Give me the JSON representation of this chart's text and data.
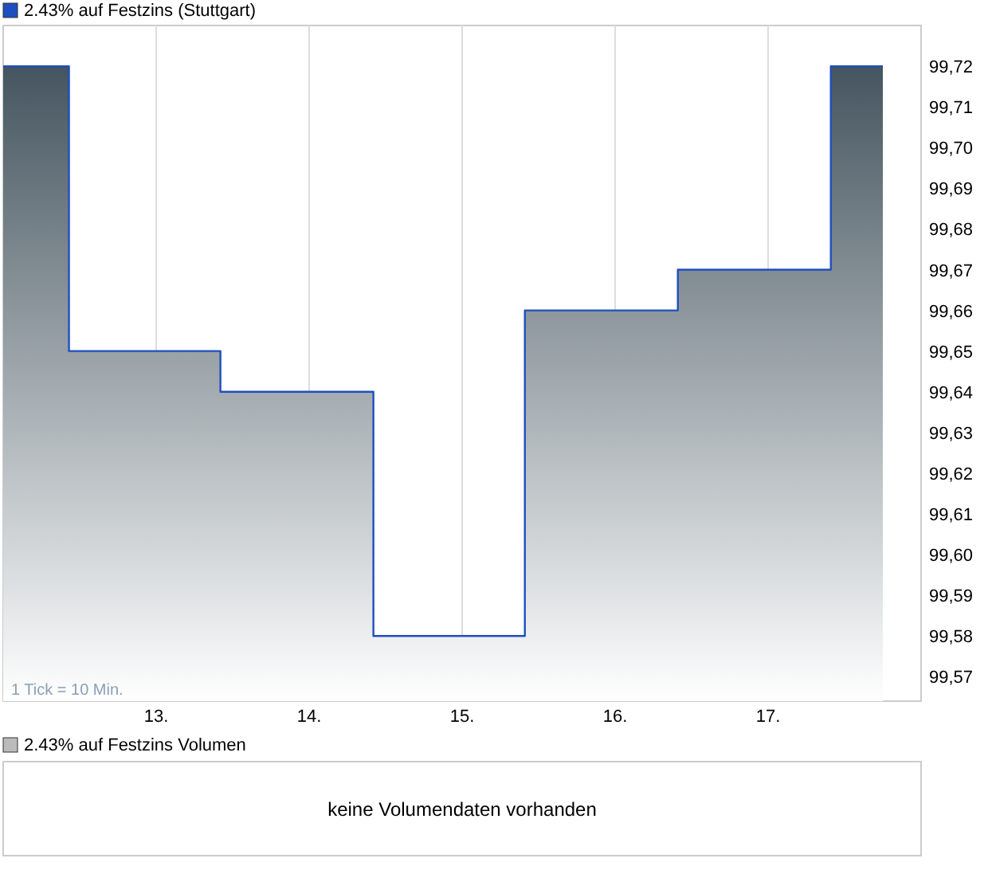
{
  "chart_data": [
    {
      "type": "area",
      "title": "2.43%  auf Festzins (Stuttgart)",
      "x": [
        12,
        12.43,
        12.43,
        13.42,
        13.42,
        14.42,
        14.42,
        15.41,
        15.41,
        16.41,
        16.41,
        17.41,
        17.41,
        17.75
      ],
      "series": [
        {
          "color": "#1f4fbf",
          "values": [
            99.72,
            99.72,
            99.65,
            99.65,
            99.64,
            99.64,
            99.58,
            99.58,
            99.66,
            99.66,
            99.67,
            99.67,
            99.72,
            99.72
          ]
        }
      ],
      "xlim": [
        12,
        18
      ],
      "xticks": [
        {
          "value": 13,
          "label": "13."
        },
        {
          "value": 14,
          "label": "14."
        },
        {
          "value": 15,
          "label": "15."
        },
        {
          "value": 16,
          "label": "16."
        },
        {
          "value": 17,
          "label": "17."
        }
      ],
      "ylim": [
        99.564,
        99.73
      ],
      "yticks": [
        {
          "value": 99.57,
          "label": "99,57"
        },
        {
          "value": 99.58,
          "label": "99,58"
        },
        {
          "value": 99.59,
          "label": "99,59"
        },
        {
          "value": 99.6,
          "label": "99,60"
        },
        {
          "value": 99.61,
          "label": "99,61"
        },
        {
          "value": 99.62,
          "label": "99,62"
        },
        {
          "value": 99.63,
          "label": "99,63"
        },
        {
          "value": 99.64,
          "label": "99,64"
        },
        {
          "value": 99.65,
          "label": "99,65"
        },
        {
          "value": 99.66,
          "label": "99,66"
        },
        {
          "value": 99.67,
          "label": "99,67"
        },
        {
          "value": 99.68,
          "label": "99,68"
        },
        {
          "value": 99.69,
          "label": "99,69"
        },
        {
          "value": 99.7,
          "label": "99,70"
        },
        {
          "value": 99.71,
          "label": "99,71"
        },
        {
          "value": 99.72,
          "label": "99,72"
        }
      ],
      "grid": "x",
      "annotations": [
        "1 Tick = 10 Min."
      ]
    },
    {
      "type": "other",
      "title": "2.43%  auf Festzins Volumen",
      "annotations": [
        "keine Volumendaten vorhanden"
      ]
    }
  ]
}
